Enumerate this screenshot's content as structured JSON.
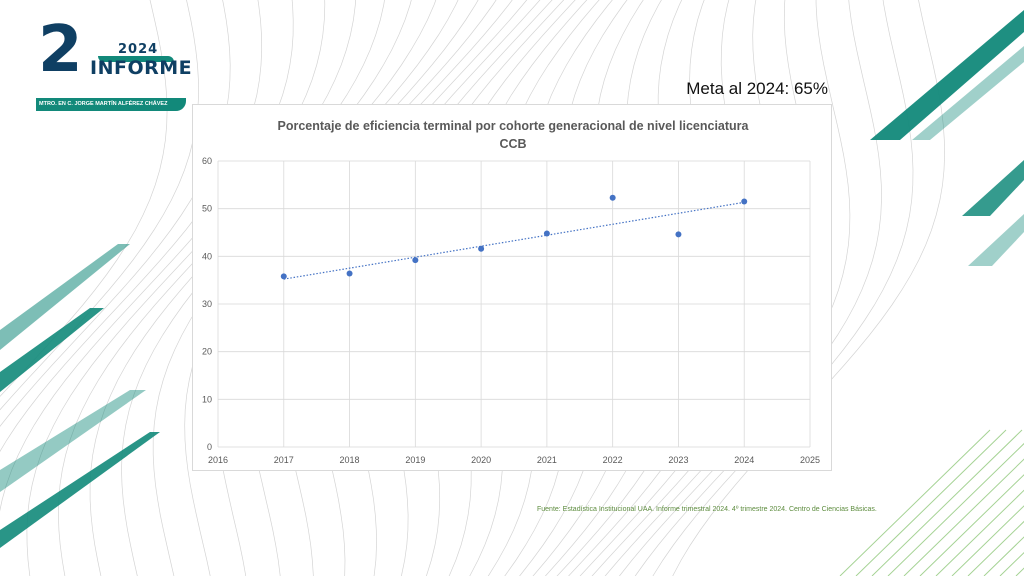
{
  "logo": {
    "number": "2",
    "year": "2024",
    "word": "INFORME",
    "subtitle": "MTRO. EN C. JORGE MARTÍN ALFÉREZ CHÁVEZ"
  },
  "meta_text": "Meta al 2024: 65%",
  "source_text": "Fuente: Estadística Institucional UAA. Informe trimestral 2024. 4º trimestre 2024. Centro de Ciencias Básicas.",
  "colors": {
    "point": "#4472c4",
    "trendline": "#4472c4",
    "teal": "#12897a",
    "navy": "#0f3f63",
    "source": "#5d8c3e"
  },
  "chart_data": {
    "type": "scatter",
    "title": "Porcentaje de eficiencia terminal por cohorte generacional de nivel licenciatura",
    "subtitle": "CCB",
    "x": [
      2017,
      2018,
      2019,
      2020,
      2021,
      2022,
      2023,
      2024
    ],
    "y": [
      35.8,
      36.4,
      39.2,
      41.6,
      44.8,
      52.3,
      44.6,
      51.5
    ],
    "trendline": "linear",
    "xlim": [
      2016,
      2025
    ],
    "ylim": [
      0,
      60
    ],
    "xticks": [
      2016,
      2017,
      2018,
      2019,
      2020,
      2021,
      2022,
      2023,
      2024,
      2025
    ],
    "yticks": [
      0,
      10,
      20,
      30,
      40,
      50,
      60
    ],
    "grid": true,
    "legend": "none",
    "xlabel": "",
    "ylabel": ""
  }
}
